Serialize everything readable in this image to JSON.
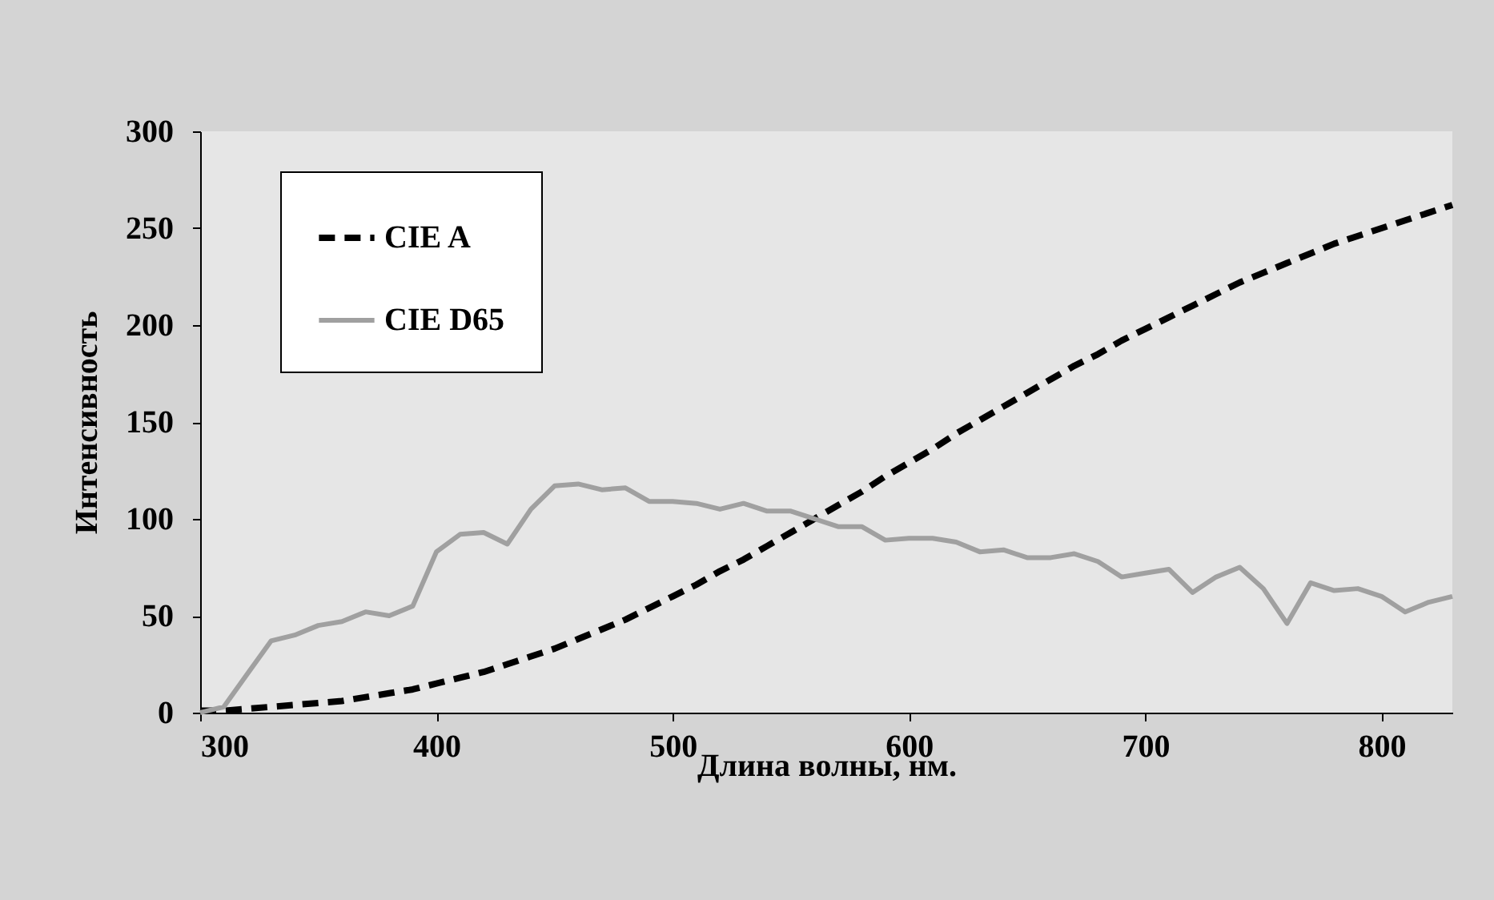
{
  "chart_data": {
    "type": "line",
    "xlabel": "Длина волны, нм.",
    "ylabel": "Интенсивность",
    "x": [
      300,
      310,
      320,
      330,
      340,
      350,
      360,
      370,
      380,
      390,
      400,
      410,
      420,
      430,
      440,
      450,
      460,
      470,
      480,
      490,
      500,
      510,
      520,
      530,
      540,
      550,
      560,
      570,
      580,
      590,
      600,
      610,
      620,
      630,
      640,
      650,
      660,
      670,
      680,
      690,
      700,
      710,
      720,
      730,
      740,
      750,
      760,
      770,
      780,
      790,
      800,
      810,
      820,
      830
    ],
    "series": [
      {
        "name": "CIE A",
        "color": "#000000",
        "line_style": "dashed",
        "values": [
          1,
          1,
          2,
          3,
          4,
          5,
          6,
          8,
          10,
          12,
          15,
          18,
          21,
          25,
          29,
          33,
          38,
          43,
          48,
          54,
          60,
          66,
          73,
          79,
          86,
          93,
          100,
          107,
          114,
          122,
          129,
          136,
          144,
          151,
          158,
          165,
          172,
          179,
          185,
          192,
          198,
          204,
          210,
          216,
          222,
          227,
          232,
          237,
          242,
          246,
          250,
          254,
          258,
          262
        ]
      },
      {
        "name": "CIE D65",
        "color": "#a0a0a0",
        "line_style": "solid",
        "values": [
          0,
          3,
          20,
          37,
          40,
          45,
          47,
          52,
          50,
          55,
          83,
          92,
          93,
          87,
          105,
          117,
          118,
          115,
          116,
          109,
          109,
          108,
          105,
          108,
          104,
          104,
          100,
          96,
          96,
          89,
          90,
          90,
          88,
          83,
          84,
          80,
          80,
          82,
          78,
          70,
          72,
          74,
          62,
          70,
          75,
          64,
          46,
          67,
          63,
          64,
          60,
          52,
          57,
          60
        ]
      }
    ],
    "xlim": [
      300,
      830
    ],
    "xticks": [
      300,
      400,
      500,
      600,
      700,
      800
    ],
    "ylim": [
      0,
      300
    ],
    "yticks": [
      0,
      50,
      100,
      150,
      200,
      250,
      300
    ],
    "grid": false,
    "legend": "top left",
    "marker": "none"
  }
}
